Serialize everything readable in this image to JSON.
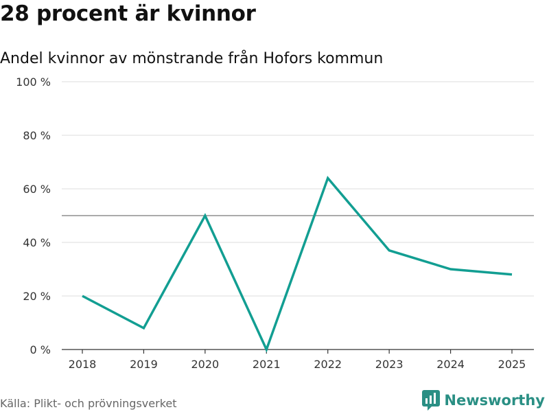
{
  "header": {
    "title": "28 procent är kvinnor",
    "subtitle": "Andel kvinnor av mönstrande från Hofors kommun"
  },
  "footer": {
    "source": "Källa: Plikt- och prövningsverket",
    "brand": "Newsworthy",
    "brand_icon": "bar-chart-speech-bubble-icon"
  },
  "colors": {
    "line": "#129e92",
    "grid": "#dddddd",
    "reference": "#777777",
    "brand": "#2a8f84"
  },
  "chart_data": {
    "type": "line",
    "title": "28 procent är kvinnor",
    "subtitle": "Andel kvinnor av mönstrande från Hofors kommun",
    "xlabel": "",
    "ylabel": "",
    "categories": [
      "2018",
      "2019",
      "2020",
      "2021",
      "2022",
      "2023",
      "2024",
      "2025"
    ],
    "series": [
      {
        "name": "Andel kvinnor",
        "values": [
          20,
          8,
          50,
          0,
          64,
          37,
          30,
          28
        ]
      }
    ],
    "ylim": [
      0,
      100
    ],
    "yticks": [
      0,
      20,
      40,
      60,
      80,
      100
    ],
    "ytick_labels": [
      "0 %",
      "20 %",
      "40 %",
      "60 %",
      "80 %",
      "100 %"
    ],
    "reference_line": 50,
    "grid": true
  }
}
